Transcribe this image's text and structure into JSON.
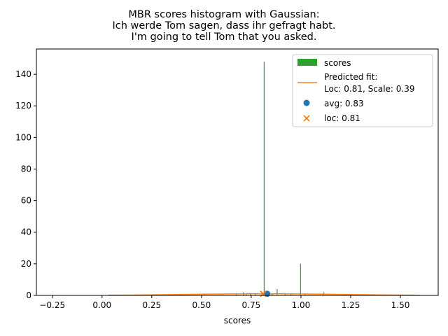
{
  "chart_data": {
    "type": "bar",
    "title_lines": [
      "MBR scores histogram with Gaussian:",
      "Ich werde Tom sagen, dass ihr gefragt habt.",
      "I'm going to tell Tom that you asked."
    ],
    "xlabel": "scores",
    "ylabel": "",
    "xlim": [
      -0.33,
      1.69
    ],
    "ylim": [
      0,
      156
    ],
    "x_ticks": [
      -0.25,
      0.0,
      0.25,
      0.5,
      0.75,
      1.0,
      1.25,
      1.5
    ],
    "x_tick_labels": [
      "−0.25",
      "0.00",
      "0.25",
      "0.50",
      "0.75",
      "1.00",
      "1.25",
      "1.50"
    ],
    "y_ticks": [
      0,
      20,
      40,
      60,
      80,
      100,
      120,
      140
    ],
    "y_tick_labels": [
      "0",
      "20",
      "40",
      "60",
      "80",
      "100",
      "120",
      "140"
    ],
    "grid": false,
    "legend_position": "top-right",
    "colors": {
      "bars": "#2ca02c",
      "fit": "#ff7f0e",
      "avg": "#1f77b4",
      "loc": "#ff7f0e"
    },
    "histogram": {
      "name": "scores",
      "bin_width": 0.004,
      "bins": [
        {
          "x": 0.675,
          "count": 1
        },
        {
          "x": 0.71,
          "count": 2
        },
        {
          "x": 0.725,
          "count": 1
        },
        {
          "x": 0.745,
          "count": 1
        },
        {
          "x": 0.77,
          "count": 1
        },
        {
          "x": 0.815,
          "count": 148
        },
        {
          "x": 0.855,
          "count": 1
        },
        {
          "x": 0.88,
          "count": 4
        },
        {
          "x": 0.92,
          "count": 1
        },
        {
          "x": 0.95,
          "count": 1
        },
        {
          "x": 0.998,
          "count": 20
        },
        {
          "x": 1.02,
          "count": 1
        },
        {
          "x": 1.115,
          "count": 2
        }
      ]
    },
    "fit": {
      "name_line1": "Predicted fit:",
      "name_line2": "Loc: 0.81, Scale: 0.39",
      "loc": 0.81,
      "scale": 0.39,
      "x_range": [
        0.03,
        1.6
      ],
      "y_peak": 1.0
    },
    "avg_point": {
      "name": "avg: 0.83",
      "x": 0.83,
      "y": 1
    },
    "loc_point": {
      "name": "loc: 0.81",
      "x": 0.81,
      "y": 1
    }
  }
}
